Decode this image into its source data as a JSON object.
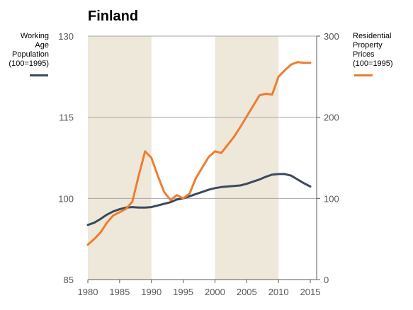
{
  "chart_data": {
    "type": "line",
    "title": "Finland",
    "x": [
      1980,
      1981,
      1982,
      1983,
      1984,
      1985,
      1986,
      1987,
      1988,
      1989,
      1990,
      1991,
      1992,
      1993,
      1994,
      1995,
      1996,
      1997,
      1998,
      1999,
      2000,
      2001,
      2002,
      2003,
      2004,
      2005,
      2006,
      2007,
      2008,
      2009,
      2010,
      2011,
      2012,
      2013,
      2014,
      2015
    ],
    "xlim": [
      1980,
      2016
    ],
    "x_ticks": [
      "1980",
      "1985",
      "1990",
      "1995",
      "2000",
      "2005",
      "2010",
      "2015"
    ],
    "y_left": {
      "label": "Working Age Population (100=1995)",
      "lim": [
        85,
        130
      ],
      "ticks": [
        "85",
        "100",
        "115",
        "130"
      ]
    },
    "y_right": {
      "label": "Residential Property Prices (100=1995)",
      "lim": [
        0,
        300
      ],
      "ticks": [
        "0",
        "100",
        "200",
        "300"
      ]
    },
    "series": [
      {
        "name": "Working Age Population (100=1995)",
        "axis": "left",
        "color": "#3b4a5c",
        "values": [
          95.1,
          95.5,
          96.2,
          97.0,
          97.6,
          98.0,
          98.3,
          98.4,
          98.3,
          98.3,
          98.4,
          98.7,
          99.0,
          99.3,
          99.8,
          100.0,
          100.4,
          100.8,
          101.2,
          101.6,
          101.9,
          102.1,
          102.2,
          102.3,
          102.4,
          102.7,
          103.1,
          103.5,
          104.0,
          104.4,
          104.5,
          104.5,
          104.2,
          103.5,
          102.8,
          102.2
        ]
      },
      {
        "name": "Residential Property Prices (100=1995)",
        "axis": "right",
        "color": "#ed7d31",
        "values": [
          43,
          50,
          58,
          70,
          79,
          83,
          87,
          96,
          128,
          158,
          150,
          128,
          108,
          98,
          104,
          100,
          106,
          125,
          138,
          151,
          158,
          156,
          166,
          176,
          188,
          201,
          214,
          227,
          229,
          228,
          250,
          258,
          265,
          268,
          267,
          267
        ]
      }
    ],
    "shaded_periods": [
      [
        1980,
        1990
      ],
      [
        2000,
        2010
      ]
    ],
    "grid": "horizontal",
    "legend_placement": "left and right of plot, top",
    "colors": {
      "shading": "#eee8da",
      "grid": "#a6a6a6",
      "axis": "#595959",
      "tick_text": "#595959"
    }
  },
  "legend": {
    "left": [
      "Working",
      "Age",
      "Population",
      "(100=1995)"
    ],
    "right": [
      "Residential",
      "Property",
      "Prices",
      "(100=1995)"
    ]
  }
}
